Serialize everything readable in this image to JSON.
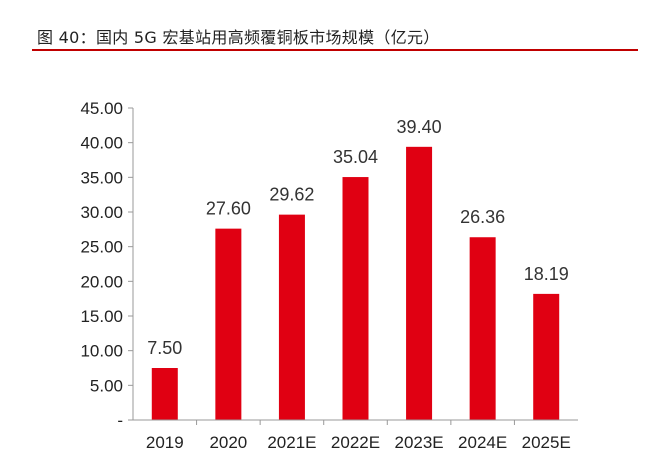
{
  "title": "图 40：国内 5G 宏基站用高频覆铜板市场规模（亿元）",
  "colors": {
    "accent": "#c00000",
    "bar": "#e00012"
  },
  "chart_data": {
    "type": "bar",
    "categories": [
      "2019",
      "2020",
      "2021E",
      "2022E",
      "2023E",
      "2024E",
      "2025E"
    ],
    "values": [
      7.5,
      27.6,
      29.62,
      35.04,
      39.4,
      26.36,
      18.19
    ],
    "data_labels": [
      "7.50",
      "27.60",
      "29.62",
      "35.04",
      "39.40",
      "26.36",
      "18.19"
    ],
    "ylim": [
      0,
      45
    ],
    "yticks": [
      0,
      5,
      10,
      15,
      20,
      25,
      30,
      35,
      40,
      45
    ],
    "ytick_labels": [
      "-",
      "5.00",
      "10.00",
      "15.00",
      "20.00",
      "25.00",
      "30.00",
      "35.00",
      "40.00",
      "45.00"
    ],
    "xlabel": "",
    "ylabel": "",
    "grid": false,
    "legend": "none"
  }
}
